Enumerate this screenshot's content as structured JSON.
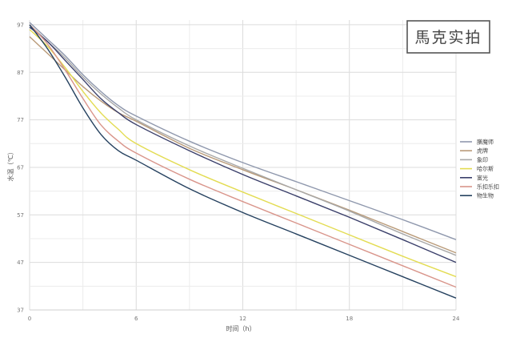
{
  "watermark": "馬克实拍",
  "chart_data": {
    "type": "line",
    "xlabel": "时间（h）",
    "ylabel": "水温（℃）",
    "x_ticks": [
      "0",
      "6",
      "12",
      "18",
      "24"
    ],
    "y_ticks": [
      "37",
      "47",
      "57",
      "67",
      "77",
      "87",
      "97"
    ],
    "xlim": [
      0,
      24
    ],
    "ylim": [
      37,
      98
    ],
    "grid": true,
    "legend_position": "right",
    "series": [
      {
        "name": "膳魔师",
        "color": "#8f98ad",
        "x": [
          0,
          1,
          2,
          3,
          4,
          5,
          6,
          9,
          12,
          15,
          18,
          21,
          24
        ],
        "y": [
          97.5,
          94,
          90.5,
          86.5,
          83,
          80,
          77.8,
          72.5,
          68,
          64,
          60,
          56,
          51.8
        ]
      },
      {
        "name": "虎牌",
        "color": "#b99a78",
        "x": [
          0,
          1,
          2,
          3,
          4,
          5,
          6,
          9,
          12,
          15,
          18,
          21,
          24
        ],
        "y": [
          94.5,
          91,
          87.5,
          84,
          81,
          78.5,
          76.7,
          71,
          66.5,
          62.3,
          58,
          53.5,
          49
        ]
      },
      {
        "name": "象印",
        "color": "#a8a8a8",
        "x": [
          0,
          1,
          2,
          3,
          4,
          5,
          6,
          9,
          12,
          15,
          18,
          21,
          24
        ],
        "y": [
          97,
          93.5,
          90,
          86,
          82.5,
          79.5,
          77,
          71.5,
          66.8,
          62.3,
          57.8,
          53,
          48.5
        ]
      },
      {
        "name": "哈尔斯",
        "color": "#e3dc52",
        "x": [
          0,
          1,
          2,
          3,
          4,
          5,
          6,
          9,
          12,
          15,
          18,
          21,
          24
        ],
        "y": [
          96,
          92.5,
          88,
          83,
          78.5,
          75,
          72,
          66.5,
          61.8,
          57.3,
          52.8,
          48.3,
          44
        ]
      },
      {
        "name": "富光",
        "color": "#3a3f6a",
        "x": [
          0,
          1,
          2,
          3,
          4,
          5,
          6,
          9,
          12,
          15,
          18,
          21,
          24
        ],
        "y": [
          96.5,
          93.5,
          89.5,
          85.5,
          81.5,
          78.5,
          76,
          70.5,
          65.5,
          61,
          56.5,
          51.8,
          47
        ]
      },
      {
        "name": "乐扣乐扣",
        "color": "#d9958b",
        "x": [
          0,
          1,
          2,
          3,
          4,
          5,
          6,
          9,
          12,
          15,
          18,
          21,
          24
        ],
        "y": [
          97,
          93,
          87.5,
          81.5,
          76,
          72.5,
          70,
          64.5,
          59.8,
          55.3,
          50.8,
          46.3,
          41.8
        ]
      },
      {
        "name": "物生物",
        "color": "#25415f",
        "x": [
          0,
          1,
          2,
          3,
          4,
          5,
          6,
          9,
          12,
          15,
          18,
          21,
          24
        ],
        "y": [
          97,
          92,
          86,
          79.5,
          74,
          70.5,
          68.5,
          62.5,
          57.5,
          53,
          48.5,
          44,
          39.5
        ]
      }
    ]
  }
}
